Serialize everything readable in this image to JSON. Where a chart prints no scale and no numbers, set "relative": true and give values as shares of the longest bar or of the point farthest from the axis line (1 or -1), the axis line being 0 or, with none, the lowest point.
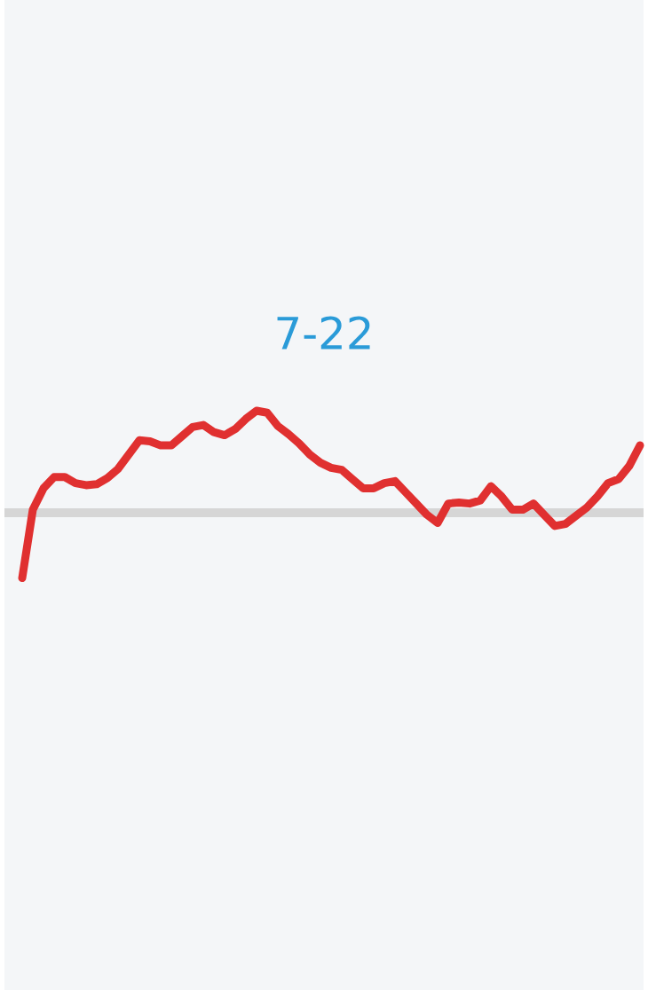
{
  "chart_data": {
    "type": "line",
    "title": "7-22",
    "relative": true,
    "categories": [
      null,
      null,
      null,
      null,
      null,
      null,
      null,
      null,
      null,
      null,
      null,
      null,
      null,
      null,
      null,
      null,
      null,
      null,
      null,
      null,
      null,
      null,
      null,
      null,
      null,
      null,
      null,
      null,
      null,
      null,
      null,
      null,
      null,
      null,
      null,
      null,
      null,
      null,
      null,
      null,
      null,
      null,
      null,
      null,
      null,
      null,
      null,
      null,
      null,
      null,
      null,
      null,
      null,
      null,
      null,
      null,
      null,
      null,
      null
    ],
    "series": [
      {
        "color": "#e03030",
        "values": [
          -0.64,
          0.03,
          0.24,
          0.35,
          0.35,
          0.29,
          0.27,
          0.28,
          0.34,
          0.43,
          0.57,
          0.71,
          0.7,
          0.66,
          0.66,
          0.75,
          0.84,
          0.86,
          0.79,
          0.76,
          0.82,
          0.92,
          1.0,
          0.98,
          0.85,
          0.77,
          0.68,
          0.57,
          0.49,
          0.44,
          0.42,
          0.33,
          0.24,
          0.24,
          0.29,
          0.31,
          0.2,
          0.09,
          -0.02,
          -0.1,
          0.09,
          0.1,
          0.09,
          0.12,
          0.26,
          0.16,
          0.03,
          0.03,
          0.09,
          -0.02,
          -0.13,
          -0.11,
          -0.03,
          0.05,
          0.16,
          0.29,
          0.33,
          0.46,
          0.66
        ]
      }
    ]
  }
}
